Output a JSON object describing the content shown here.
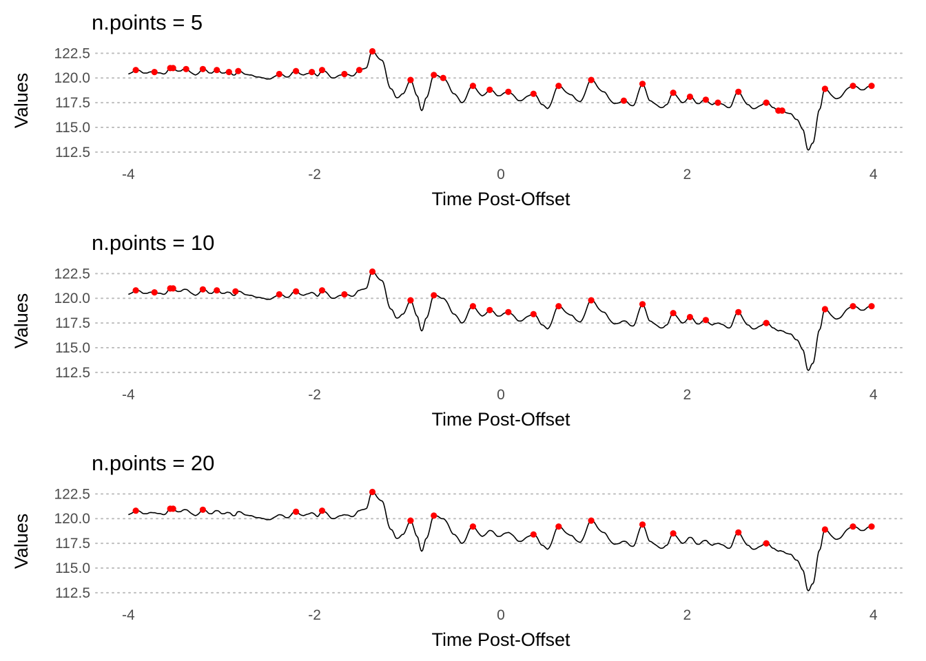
{
  "chart_data": [
    {
      "type": "line",
      "title": "n.points = 5",
      "xlabel": "Time Post-Offset",
      "ylabel": "Values",
      "xlim": [
        -4.35,
        4.35
      ],
      "ylim": [
        112.0,
        123.5
      ],
      "xticks": [
        -4,
        -2,
        0,
        2,
        4
      ],
      "yticks": [
        112.5,
        115.0,
        117.5,
        120.0,
        122.5
      ],
      "ytick_labels": [
        "112.5",
        "115.0",
        "117.5",
        "120.0",
        "122.5"
      ],
      "grid": "horizontal-dotted",
      "line_color": "#000000",
      "point_color": "#ff0000",
      "series": [
        {
          "type": "line",
          "x": [],
          "y": []
        },
        {
          "type": "scatter",
          "x": [
            -3.92,
            -3.72,
            -3.55,
            -3.52,
            -3.38,
            -3.2,
            -3.05,
            -2.92,
            -2.82,
            -2.38,
            -2.2,
            -2.03,
            -1.92,
            -1.68,
            -1.52,
            -1.38,
            -0.97,
            -0.72,
            -0.62,
            -0.3,
            -0.12,
            0.08,
            0.35,
            0.62,
            0.97,
            1.32,
            1.52,
            1.85,
            2.03,
            2.2,
            2.33,
            2.55,
            2.85,
            2.98,
            3.02,
            3.48,
            3.78,
            3.98
          ],
          "y": [
            120.8,
            120.6,
            121.0,
            121.0,
            120.9,
            120.9,
            120.8,
            120.6,
            120.7,
            120.4,
            120.7,
            120.6,
            120.8,
            120.4,
            120.8,
            122.7,
            119.8,
            120.3,
            120.0,
            119.2,
            118.8,
            118.6,
            118.4,
            119.2,
            119.8,
            117.7,
            119.4,
            118.5,
            118.1,
            117.8,
            117.5,
            118.6,
            117.5,
            116.7,
            116.7,
            118.9,
            119.2,
            119.2
          ]
        }
      ]
    },
    {
      "type": "line",
      "title": "n.points = 10",
      "xlabel": "Time Post-Offset",
      "ylabel": "Values",
      "xlim": [
        -4.35,
        4.35
      ],
      "ylim": [
        112.0,
        123.5
      ],
      "xticks": [
        -4,
        -2,
        0,
        2,
        4
      ],
      "yticks": [
        112.5,
        115.0,
        117.5,
        120.0,
        122.5
      ],
      "ytick_labels": [
        "112.5",
        "115.0",
        "117.5",
        "120.0",
        "122.5"
      ],
      "grid": "horizontal-dotted",
      "line_color": "#000000",
      "point_color": "#ff0000",
      "series": [
        {
          "type": "line",
          "x": [],
          "y": []
        },
        {
          "type": "scatter",
          "x": [
            -3.92,
            -3.72,
            -3.55,
            -3.52,
            -3.2,
            -3.05,
            -2.85,
            -2.38,
            -2.2,
            -1.92,
            -1.68,
            -1.38,
            -0.97,
            -0.72,
            -0.3,
            -0.12,
            0.08,
            0.35,
            0.62,
            0.97,
            1.52,
            1.85,
            2.03,
            2.2,
            2.55,
            2.85,
            3.48,
            3.78,
            3.98
          ],
          "y": [
            120.8,
            120.6,
            121.0,
            121.0,
            120.9,
            120.8,
            120.7,
            120.4,
            120.7,
            120.8,
            120.4,
            122.7,
            119.8,
            120.3,
            119.2,
            118.8,
            118.6,
            118.4,
            119.2,
            119.8,
            119.4,
            118.5,
            118.1,
            117.8,
            118.6,
            117.5,
            118.9,
            119.2,
            119.2
          ]
        }
      ]
    },
    {
      "type": "line",
      "title": "n.points = 20",
      "xlabel": "Time Post-Offset",
      "ylabel": "Values",
      "xlim": [
        -4.35,
        4.35
      ],
      "ylim": [
        112.0,
        123.5
      ],
      "xticks": [
        -4,
        -2,
        0,
        2,
        4
      ],
      "yticks": [
        112.5,
        115.0,
        117.5,
        120.0,
        122.5
      ],
      "ytick_labels": [
        "112.5",
        "115.0",
        "117.5",
        "120.0",
        "122.5"
      ],
      "grid": "horizontal-dotted",
      "line_color": "#000000",
      "point_color": "#ff0000",
      "series": [
        {
          "type": "line",
          "x": [],
          "y": []
        },
        {
          "type": "scatter",
          "x": [
            -3.92,
            -3.55,
            -3.52,
            -3.2,
            -2.2,
            -1.92,
            -1.38,
            -0.97,
            -0.72,
            -0.3,
            0.35,
            0.62,
            0.97,
            1.52,
            1.85,
            2.55,
            2.85,
            3.48,
            3.78,
            3.98
          ],
          "y": [
            120.8,
            121.0,
            121.0,
            120.9,
            120.7,
            120.8,
            122.7,
            119.8,
            120.3,
            119.2,
            118.4,
            119.2,
            119.8,
            119.4,
            118.5,
            118.6,
            117.5,
            118.9,
            119.2,
            119.2
          ]
        }
      ]
    }
  ],
  "signal_keypoints": {
    "x": [
      -4.0,
      -3.92,
      -3.82,
      -3.72,
      -3.62,
      -3.55,
      -3.45,
      -3.38,
      -3.28,
      -3.2,
      -3.12,
      -3.05,
      -2.98,
      -2.92,
      -2.86,
      -2.82,
      -2.7,
      -2.55,
      -2.48,
      -2.38,
      -2.3,
      -2.2,
      -2.12,
      -2.03,
      -1.97,
      -1.92,
      -1.8,
      -1.68,
      -1.6,
      -1.52,
      -1.45,
      -1.38,
      -1.28,
      -1.18,
      -1.12,
      -1.05,
      -0.97,
      -0.9,
      -0.85,
      -0.8,
      -0.72,
      -0.62,
      -0.5,
      -0.42,
      -0.3,
      -0.2,
      -0.12,
      -0.02,
      0.08,
      0.2,
      0.35,
      0.45,
      0.5,
      0.62,
      0.75,
      0.85,
      0.97,
      1.1,
      1.22,
      1.32,
      1.42,
      1.52,
      1.6,
      1.72,
      1.78,
      1.85,
      1.95,
      2.03,
      2.12,
      2.2,
      2.27,
      2.33,
      2.45,
      2.55,
      2.65,
      2.72,
      2.85,
      2.93,
      2.98,
      3.02,
      3.1,
      3.18,
      3.24,
      3.3,
      3.35,
      3.42,
      3.48,
      3.6,
      3.78,
      3.88,
      3.98
    ],
    "y": [
      120.4,
      120.8,
      120.5,
      120.6,
      120.4,
      121.0,
      120.7,
      120.9,
      120.3,
      120.9,
      120.5,
      120.8,
      120.5,
      120.6,
      120.3,
      120.7,
      120.3,
      120.0,
      119.9,
      120.4,
      120.1,
      120.7,
      120.3,
      120.6,
      120.2,
      120.8,
      120.0,
      120.4,
      120.2,
      120.8,
      121.0,
      122.7,
      121.8,
      118.9,
      118.0,
      118.4,
      119.8,
      118.2,
      116.7,
      118.0,
      120.3,
      120.0,
      118.4,
      117.5,
      119.2,
      118.2,
      118.8,
      118.2,
      118.6,
      117.7,
      118.4,
      117.3,
      116.9,
      119.2,
      118.3,
      117.6,
      119.8,
      118.6,
      117.4,
      117.7,
      117.2,
      119.4,
      117.7,
      117.0,
      117.3,
      118.5,
      117.5,
      118.1,
      117.4,
      117.8,
      117.3,
      117.5,
      117.0,
      118.6,
      117.3,
      116.9,
      117.5,
      117.0,
      116.7,
      116.7,
      116.4,
      115.8,
      114.8,
      112.7,
      113.4,
      116.8,
      118.9,
      117.9,
      119.2,
      118.8,
      119.2
    ]
  }
}
